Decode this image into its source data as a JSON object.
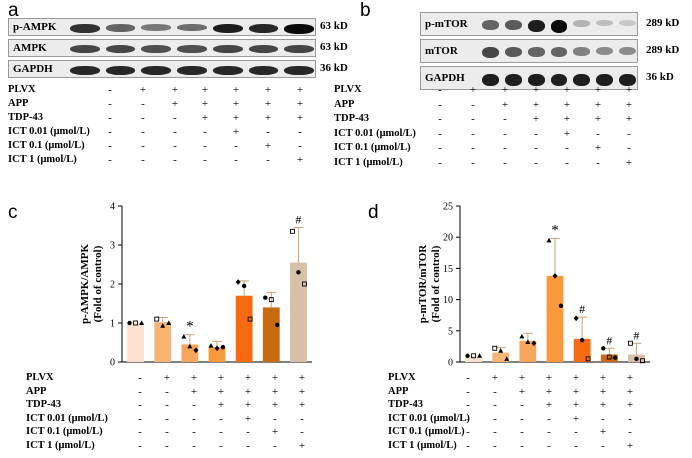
{
  "panels": {
    "a": "a",
    "b": "b",
    "c": "c",
    "d": "d"
  },
  "blot_a": {
    "rows": [
      {
        "label": "p-AMPK",
        "kd": "63 kD",
        "intensities": [
          0.8,
          0.55,
          0.45,
          0.5,
          0.9,
          0.85,
          1.0
        ]
      },
      {
        "label": "AMPK",
        "kd": "63 kD",
        "intensities": [
          0.7,
          0.7,
          0.65,
          0.65,
          0.7,
          0.7,
          0.7
        ]
      },
      {
        "label": "GAPDH",
        "kd": "36 kD",
        "intensities": [
          0.85,
          0.85,
          0.85,
          0.85,
          0.85,
          0.85,
          0.85
        ]
      }
    ]
  },
  "blot_b": {
    "rows": [
      {
        "label": "p-mTOR",
        "kd": "289 kD",
        "intensities": [
          0.55,
          0.6,
          0.9,
          1.0,
          0.15,
          0.1,
          0.05
        ]
      },
      {
        "label": "mTOR",
        "kd": "289 kD",
        "intensities": [
          0.7,
          0.6,
          0.55,
          0.55,
          0.4,
          0.35,
          0.35
        ]
      },
      {
        "label": "GAPDH",
        "kd": "36 kD",
        "intensities": [
          0.9,
          0.9,
          0.9,
          0.9,
          0.9,
          0.9,
          0.9
        ]
      }
    ]
  },
  "treatments": [
    {
      "label": "PLVX",
      "signs": [
        "-",
        "+",
        "+",
        "+",
        "+",
        "+",
        "+"
      ]
    },
    {
      "label": "APP",
      "signs": [
        "-",
        "-",
        "+",
        "+",
        "+",
        "+",
        "+"
      ]
    },
    {
      "label": "TDP-43",
      "signs": [
        "-",
        "-",
        "-",
        "+",
        "+",
        "+",
        "+"
      ]
    },
    {
      "label": "ICT 0.01 (μmol/L)",
      "signs": [
        "-",
        "-",
        "-",
        "-",
        "+",
        "-",
        "-"
      ]
    },
    {
      "label": "ICT 0.1 (μmol/L)",
      "signs": [
        "-",
        "-",
        "-",
        "-",
        "-",
        "+",
        "-"
      ]
    },
    {
      "label": "ICT 1 (μmol/L)",
      "signs": [
        "-",
        "-",
        "-",
        "-",
        "-",
        "-",
        "+"
      ]
    }
  ],
  "chart_data": [
    {
      "type": "bar",
      "panel": "c",
      "ylabel": "p-AMPK/AMPK",
      "ylabel2": "(Fold of control)",
      "ylim": [
        0,
        4
      ],
      "yticks": [
        "0",
        "1",
        "2",
        "3",
        "4"
      ],
      "values": [
        1.0,
        1.02,
        0.45,
        0.38,
        1.7,
        1.4,
        2.55
      ],
      "errors": [
        0.0,
        0.12,
        0.25,
        0.15,
        0.38,
        0.38,
        0.9
      ],
      "markers": [
        "",
        "",
        "*",
        "",
        "",
        "",
        "#"
      ],
      "colors": [
        "#fde3cf",
        "#f8b472",
        "#f7a65c",
        "#f89a3c",
        "#f86a10",
        "#c86a10",
        "#d8bfa8"
      ],
      "points": [
        [
          1.0,
          1.0,
          1.0
        ],
        [
          1.1,
          0.93,
          1.0
        ],
        [
          0.65,
          0.4,
          0.3
        ],
        [
          0.42,
          0.35,
          0.38
        ],
        [
          2.05,
          1.95,
          1.1
        ],
        [
          1.65,
          1.6,
          0.95
        ],
        [
          3.35,
          2.3,
          2.0
        ]
      ]
    },
    {
      "type": "bar",
      "panel": "d",
      "ylabel": "p-mTOR/mTOR",
      "ylabel2": "(Fold of control)",
      "ylim": [
        0,
        25
      ],
      "yticks": [
        "0",
        "5",
        "10",
        "15",
        "20",
        "25"
      ],
      "values": [
        1.0,
        1.5,
        3.4,
        13.8,
        3.7,
        1.2,
        1.2
      ],
      "errors": [
        0.0,
        0.8,
        1.2,
        6.0,
        3.5,
        1.0,
        1.8
      ],
      "markers": [
        "",
        "",
        "",
        "*",
        "#",
        "#",
        "#"
      ],
      "colors": [
        "#fde3cf",
        "#f8b472",
        "#f7a65c",
        "#f89a3c",
        "#f86a10",
        "#c86a10",
        "#d8bfa8"
      ],
      "points": [
        [
          1.0,
          1.0,
          1.0
        ],
        [
          2.2,
          1.8,
          0.5
        ],
        [
          4.1,
          3.2,
          3.0
        ],
        [
          19.5,
          13.8,
          9.0
        ],
        [
          7.0,
          3.5,
          0.5
        ],
        [
          2.2,
          0.8,
          0.7
        ],
        [
          3.0,
          0.5,
          0.2
        ]
      ]
    }
  ]
}
